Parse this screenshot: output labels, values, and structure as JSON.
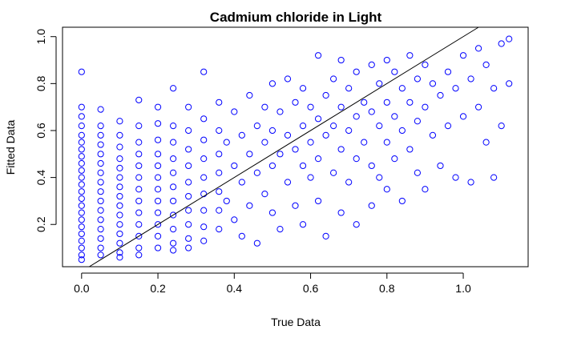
{
  "chart_data": {
    "type": "scatter",
    "title": "Cadmium chloride in Light",
    "xlabel": "True Data",
    "ylabel": "Fitted Data",
    "xlim": [
      -0.05,
      1.17
    ],
    "ylim": [
      0.02,
      1.04
    ],
    "xticks": [
      0.0,
      0.2,
      0.4,
      0.6,
      0.8,
      1.0
    ],
    "xtick_labels": [
      "0.0",
      "0.2",
      "0.4",
      "0.6",
      "0.8",
      "1.0"
    ],
    "yticks": [
      0.2,
      0.4,
      0.6,
      0.8,
      1.0
    ],
    "ytick_labels": [
      "0.2",
      "0.4",
      "0.6",
      "0.8",
      "1.0"
    ],
    "marker": "open-circle",
    "point_color": "#0000ff",
    "reference_line": {
      "slope": 1,
      "intercept": 0
    },
    "grid": false,
    "legend": "none",
    "series": [
      {
        "points": [
          [
            0.0,
            0.85
          ],
          [
            0.0,
            0.7
          ],
          [
            0.0,
            0.66
          ],
          [
            0.0,
            0.62
          ],
          [
            0.0,
            0.58
          ],
          [
            0.0,
            0.55
          ],
          [
            0.0,
            0.52
          ],
          [
            0.0,
            0.49
          ],
          [
            0.0,
            0.46
          ],
          [
            0.0,
            0.43
          ],
          [
            0.0,
            0.4
          ],
          [
            0.0,
            0.37
          ],
          [
            0.0,
            0.34
          ],
          [
            0.0,
            0.31
          ],
          [
            0.0,
            0.28
          ],
          [
            0.0,
            0.25
          ],
          [
            0.0,
            0.22
          ],
          [
            0.0,
            0.19
          ],
          [
            0.0,
            0.16
          ],
          [
            0.0,
            0.13
          ],
          [
            0.0,
            0.1
          ],
          [
            0.0,
            0.07
          ],
          [
            0.0,
            0.05
          ],
          [
            0.05,
            0.69
          ],
          [
            0.05,
            0.62
          ],
          [
            0.05,
            0.58
          ],
          [
            0.05,
            0.54
          ],
          [
            0.05,
            0.5
          ],
          [
            0.05,
            0.46
          ],
          [
            0.05,
            0.42
          ],
          [
            0.05,
            0.38
          ],
          [
            0.05,
            0.34
          ],
          [
            0.05,
            0.3
          ],
          [
            0.05,
            0.26
          ],
          [
            0.05,
            0.22
          ],
          [
            0.05,
            0.18
          ],
          [
            0.05,
            0.14
          ],
          [
            0.05,
            0.1
          ],
          [
            0.05,
            0.07
          ],
          [
            0.1,
            0.64
          ],
          [
            0.1,
            0.58
          ],
          [
            0.1,
            0.53
          ],
          [
            0.1,
            0.48
          ],
          [
            0.1,
            0.44
          ],
          [
            0.1,
            0.4
          ],
          [
            0.1,
            0.36
          ],
          [
            0.1,
            0.32
          ],
          [
            0.1,
            0.28
          ],
          [
            0.1,
            0.24
          ],
          [
            0.1,
            0.2
          ],
          [
            0.1,
            0.16
          ],
          [
            0.1,
            0.12
          ],
          [
            0.1,
            0.08
          ],
          [
            0.1,
            0.06
          ],
          [
            0.15,
            0.73
          ],
          [
            0.15,
            0.62
          ],
          [
            0.15,
            0.55
          ],
          [
            0.15,
            0.5
          ],
          [
            0.15,
            0.45
          ],
          [
            0.15,
            0.4
          ],
          [
            0.15,
            0.35
          ],
          [
            0.15,
            0.3
          ],
          [
            0.15,
            0.25
          ],
          [
            0.15,
            0.2
          ],
          [
            0.15,
            0.15
          ],
          [
            0.15,
            0.1
          ],
          [
            0.15,
            0.07
          ],
          [
            0.2,
            0.7
          ],
          [
            0.2,
            0.63
          ],
          [
            0.2,
            0.56
          ],
          [
            0.2,
            0.5
          ],
          [
            0.2,
            0.45
          ],
          [
            0.2,
            0.4
          ],
          [
            0.2,
            0.35
          ],
          [
            0.2,
            0.3
          ],
          [
            0.2,
            0.25
          ],
          [
            0.2,
            0.2
          ],
          [
            0.2,
            0.15
          ],
          [
            0.2,
            0.1
          ],
          [
            0.24,
            0.78
          ],
          [
            0.24,
            0.62
          ],
          [
            0.24,
            0.55
          ],
          [
            0.24,
            0.48
          ],
          [
            0.24,
            0.42
          ],
          [
            0.24,
            0.36
          ],
          [
            0.24,
            0.3
          ],
          [
            0.24,
            0.24
          ],
          [
            0.24,
            0.18
          ],
          [
            0.24,
            0.12
          ],
          [
            0.24,
            0.09
          ],
          [
            0.28,
            0.7
          ],
          [
            0.28,
            0.6
          ],
          [
            0.28,
            0.52
          ],
          [
            0.28,
            0.45
          ],
          [
            0.28,
            0.38
          ],
          [
            0.28,
            0.32
          ],
          [
            0.28,
            0.26
          ],
          [
            0.28,
            0.2
          ],
          [
            0.28,
            0.14
          ],
          [
            0.28,
            0.1
          ],
          [
            0.32,
            0.85
          ],
          [
            0.32,
            0.65
          ],
          [
            0.32,
            0.56
          ],
          [
            0.32,
            0.48
          ],
          [
            0.32,
            0.4
          ],
          [
            0.32,
            0.33
          ],
          [
            0.32,
            0.26
          ],
          [
            0.32,
            0.19
          ],
          [
            0.32,
            0.13
          ],
          [
            0.36,
            0.72
          ],
          [
            0.36,
            0.6
          ],
          [
            0.36,
            0.5
          ],
          [
            0.36,
            0.42
          ],
          [
            0.36,
            0.34
          ],
          [
            0.36,
            0.26
          ],
          [
            0.36,
            0.18
          ],
          [
            0.38,
            0.55
          ],
          [
            0.38,
            0.3
          ],
          [
            0.4,
            0.68
          ],
          [
            0.4,
            0.45
          ],
          [
            0.4,
            0.22
          ],
          [
            0.42,
            0.58
          ],
          [
            0.42,
            0.38
          ],
          [
            0.42,
            0.15
          ],
          [
            0.44,
            0.75
          ],
          [
            0.44,
            0.5
          ],
          [
            0.44,
            0.28
          ],
          [
            0.46,
            0.62
          ],
          [
            0.46,
            0.42
          ],
          [
            0.46,
            0.12
          ],
          [
            0.48,
            0.7
          ],
          [
            0.48,
            0.55
          ],
          [
            0.48,
            0.33
          ],
          [
            0.5,
            0.8
          ],
          [
            0.5,
            0.6
          ],
          [
            0.5,
            0.45
          ],
          [
            0.5,
            0.25
          ],
          [
            0.52,
            0.68
          ],
          [
            0.52,
            0.5
          ],
          [
            0.52,
            0.18
          ],
          [
            0.54,
            0.82
          ],
          [
            0.54,
            0.58
          ],
          [
            0.54,
            0.38
          ],
          [
            0.56,
            0.72
          ],
          [
            0.56,
            0.52
          ],
          [
            0.56,
            0.28
          ],
          [
            0.58,
            0.78
          ],
          [
            0.58,
            0.62
          ],
          [
            0.58,
            0.45
          ],
          [
            0.58,
            0.2
          ],
          [
            0.6,
            0.7
          ],
          [
            0.6,
            0.55
          ],
          [
            0.6,
            0.4
          ],
          [
            0.62,
            0.92
          ],
          [
            0.62,
            0.65
          ],
          [
            0.62,
            0.48
          ],
          [
            0.62,
            0.3
          ],
          [
            0.64,
            0.75
          ],
          [
            0.64,
            0.58
          ],
          [
            0.64,
            0.15
          ],
          [
            0.66,
            0.82
          ],
          [
            0.66,
            0.62
          ],
          [
            0.66,
            0.42
          ],
          [
            0.68,
            0.9
          ],
          [
            0.68,
            0.7
          ],
          [
            0.68,
            0.52
          ],
          [
            0.68,
            0.25
          ],
          [
            0.7,
            0.78
          ],
          [
            0.7,
            0.6
          ],
          [
            0.7,
            0.38
          ],
          [
            0.72,
            0.85
          ],
          [
            0.72,
            0.66
          ],
          [
            0.72,
            0.48
          ],
          [
            0.72,
            0.2
          ],
          [
            0.74,
            0.72
          ],
          [
            0.74,
            0.55
          ],
          [
            0.76,
            0.88
          ],
          [
            0.76,
            0.68
          ],
          [
            0.76,
            0.45
          ],
          [
            0.76,
            0.28
          ],
          [
            0.78,
            0.8
          ],
          [
            0.78,
            0.62
          ],
          [
            0.78,
            0.4
          ],
          [
            0.8,
            0.9
          ],
          [
            0.8,
            0.72
          ],
          [
            0.8,
            0.55
          ],
          [
            0.8,
            0.35
          ],
          [
            0.82,
            0.85
          ],
          [
            0.82,
            0.66
          ],
          [
            0.82,
            0.48
          ],
          [
            0.84,
            0.78
          ],
          [
            0.84,
            0.6
          ],
          [
            0.84,
            0.3
          ],
          [
            0.86,
            0.92
          ],
          [
            0.86,
            0.72
          ],
          [
            0.86,
            0.52
          ],
          [
            0.88,
            0.82
          ],
          [
            0.88,
            0.64
          ],
          [
            0.88,
            0.42
          ],
          [
            0.9,
            0.88
          ],
          [
            0.9,
            0.7
          ],
          [
            0.9,
            0.35
          ],
          [
            0.92,
            0.8
          ],
          [
            0.92,
            0.58
          ],
          [
            0.94,
            0.75
          ],
          [
            0.94,
            0.45
          ],
          [
            0.96,
            0.85
          ],
          [
            0.96,
            0.62
          ],
          [
            0.98,
            0.78
          ],
          [
            0.98,
            0.4
          ],
          [
            1.0,
            0.92
          ],
          [
            1.0,
            0.66
          ],
          [
            1.02,
            0.82
          ],
          [
            1.02,
            0.38
          ],
          [
            1.04,
            0.95
          ],
          [
            1.04,
            0.7
          ],
          [
            1.06,
            0.88
          ],
          [
            1.06,
            0.55
          ],
          [
            1.08,
            0.78
          ],
          [
            1.08,
            0.4
          ],
          [
            1.1,
            0.97
          ],
          [
            1.1,
            0.62
          ],
          [
            1.12,
            0.99
          ],
          [
            1.12,
            0.8
          ]
        ]
      }
    ]
  }
}
